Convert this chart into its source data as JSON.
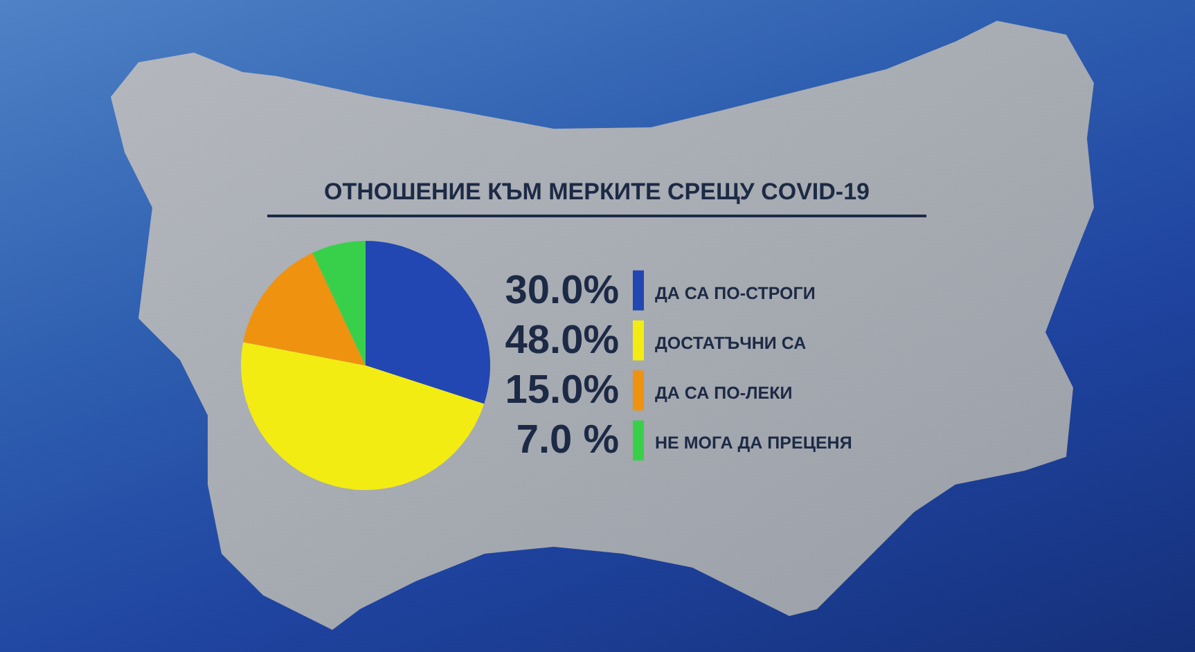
{
  "chart_data": {
    "type": "pie",
    "title": "ОТНОШЕНИЕ КЪМ МЕРКИТЕ СРЕЩУ COVID-19",
    "categories": [
      "ДА СА ПО-СТРОГИ",
      "ДОСТАТЪЧНИ СА",
      "ДА СА ПО-ЛЕКИ",
      "НЕ МОГА ДА ПРЕЦЕНЯ"
    ],
    "values": [
      30,
      48,
      15,
      7
    ],
    "value_labels": [
      "30.0%",
      "48.0%",
      "15.0%",
      "7.0 %"
    ],
    "colors": [
      "#2246b2",
      "#f3ec13",
      "#ef920f",
      "#38d04b"
    ],
    "legend": "right"
  }
}
